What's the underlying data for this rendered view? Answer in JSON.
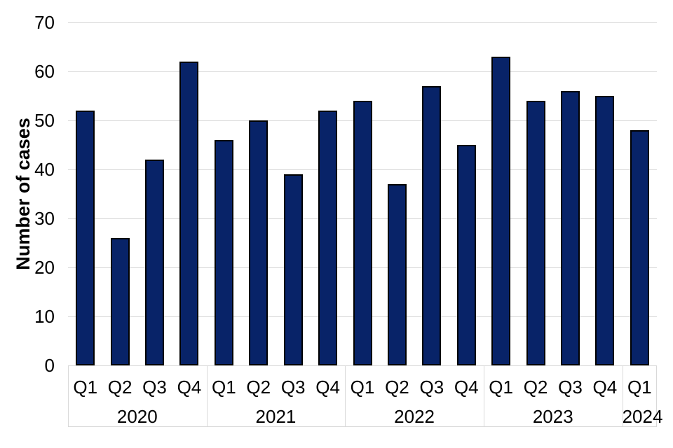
{
  "chart_data": {
    "type": "bar",
    "title": "",
    "ylabel": "Number of cases",
    "xlabel": "",
    "ylim": [
      0,
      70
    ],
    "ytick_step": 10,
    "yticks": [
      0,
      10,
      20,
      30,
      40,
      50,
      60,
      70
    ],
    "categories": [
      "Q1",
      "Q2",
      "Q3",
      "Q4",
      "Q1",
      "Q2",
      "Q3",
      "Q4",
      "Q1",
      "Q2",
      "Q3",
      "Q4",
      "Q1",
      "Q2",
      "Q3",
      "Q4",
      "Q1"
    ],
    "year_groups": [
      {
        "label": "2020",
        "span": 4
      },
      {
        "label": "2021",
        "span": 4
      },
      {
        "label": "2022",
        "span": 4
      },
      {
        "label": "2023",
        "span": 4
      },
      {
        "label": "2024",
        "span": 1
      }
    ],
    "values": [
      52,
      26,
      42,
      62,
      46,
      50,
      39,
      52,
      54,
      37,
      57,
      45,
      63,
      54,
      56,
      55,
      48
    ],
    "grid": true,
    "legend": false,
    "colors": {
      "bar_fill": "#082368",
      "bar_border": "#000000",
      "gridline": "#d9d9d9",
      "axis_box": "#d9d9d9",
      "text": "#000000"
    }
  }
}
